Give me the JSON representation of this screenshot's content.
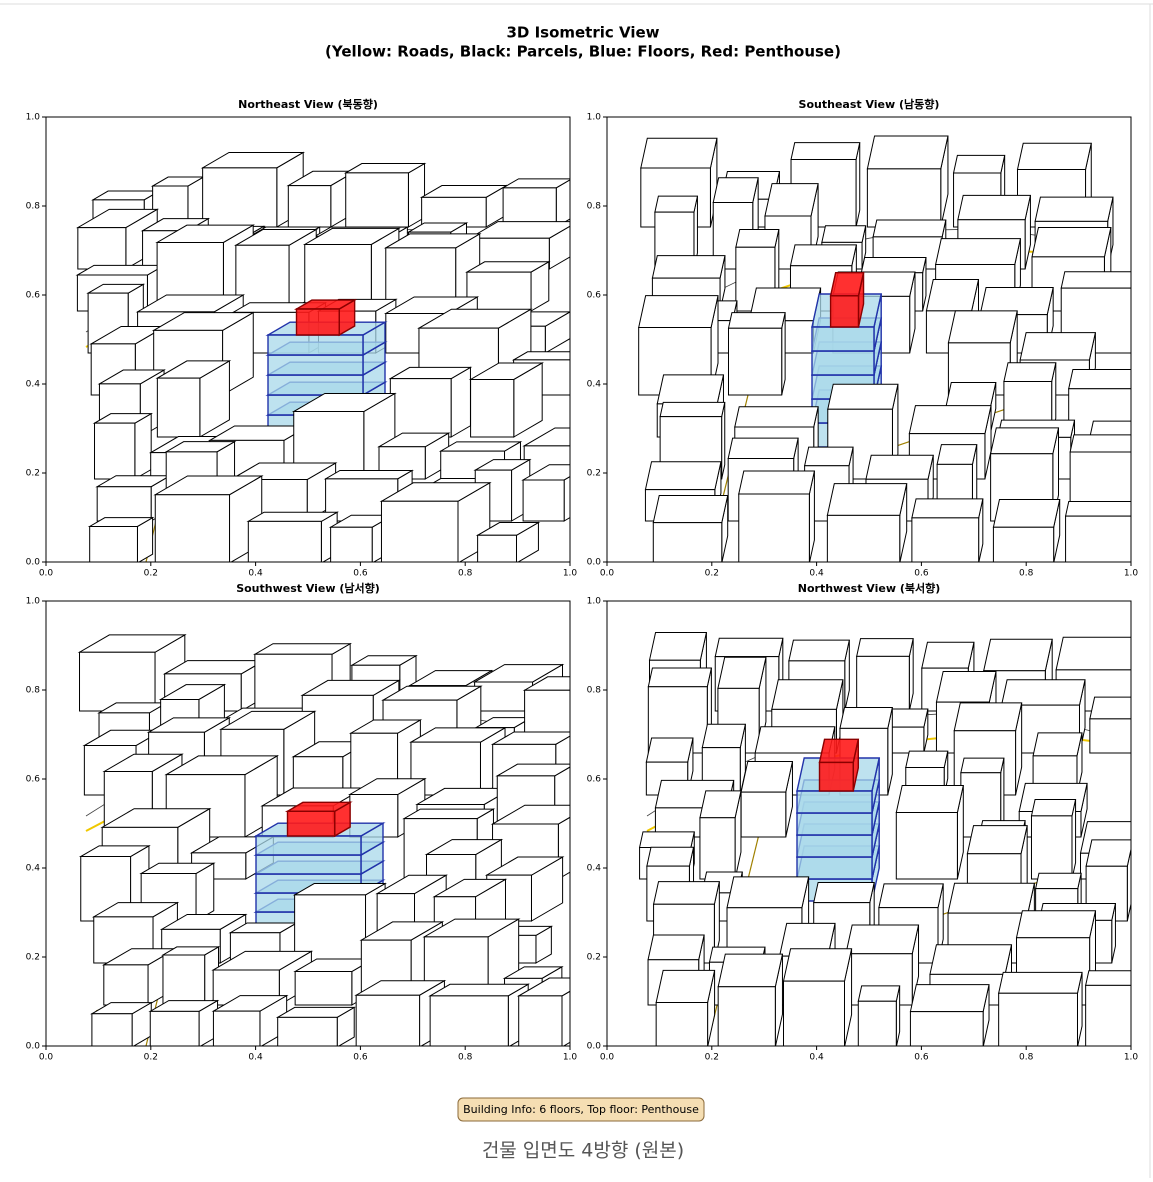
{
  "title": "3D Isometric View",
  "subtitle": "(Yellow: Roads, Black: Parcels, Blue: Floors, Red: Penthouse)",
  "chart_data": [
    {
      "type": "isometric",
      "title": "Northeast View (북동향)",
      "xlim": [
        0,
        1
      ],
      "ylim": [
        0,
        1
      ],
      "xticks": [
        {
          "value": 0,
          "label": "0.0"
        },
        0.2,
        0.4,
        0.6,
        0.8,
        {
          "value": 1,
          "label": "1.0"
        }
      ],
      "yticks": [
        {
          "value": 0,
          "label": "0.0"
        },
        0.2,
        0.4,
        0.6,
        0.8,
        {
          "value": 1,
          "label": "1.0"
        }
      ]
    },
    {
      "type": "isometric",
      "title": "Southeast View (남동향)",
      "xlim": [
        0,
        1
      ],
      "ylim": [
        0,
        1
      ],
      "xticks": [
        {
          "value": 0,
          "label": "0.0"
        },
        0.2,
        0.4,
        0.6,
        0.8,
        {
          "value": 1,
          "label": "1.0"
        }
      ],
      "yticks": [
        {
          "value": 0,
          "label": "0.0"
        },
        0.2,
        0.4,
        0.6,
        0.8,
        {
          "value": 1,
          "label": "1.0"
        }
      ]
    },
    {
      "type": "isometric",
      "title": "Southwest View (남서향)",
      "xlim": [
        0,
        1
      ],
      "ylim": [
        0,
        1
      ],
      "xticks": [
        {
          "value": 0,
          "label": "0.0"
        },
        0.2,
        0.4,
        0.6,
        0.8,
        {
          "value": 1,
          "label": "1.0"
        }
      ],
      "yticks": [
        {
          "value": 0,
          "label": "0.0"
        },
        0.2,
        0.4,
        0.6,
        0.8,
        {
          "value": 1,
          "label": "1.0"
        }
      ]
    },
    {
      "type": "isometric",
      "title": "Northwest View (북서향)",
      "xlim": [
        0,
        1
      ],
      "ylim": [
        0,
        1
      ],
      "xticks": [
        {
          "value": 0,
          "label": "0.0"
        },
        0.2,
        0.4,
        0.6,
        0.8,
        {
          "value": 1,
          "label": "1.0"
        }
      ],
      "yticks": [
        {
          "value": 0,
          "label": "0.0"
        },
        0.2,
        0.4,
        0.6,
        0.8,
        {
          "value": 1,
          "label": "1.0"
        }
      ]
    }
  ],
  "annotation": "Building Info: 6 floors, Top floor: Penthouse",
  "caption": "건물 입면도 4방향 (원본)"
}
